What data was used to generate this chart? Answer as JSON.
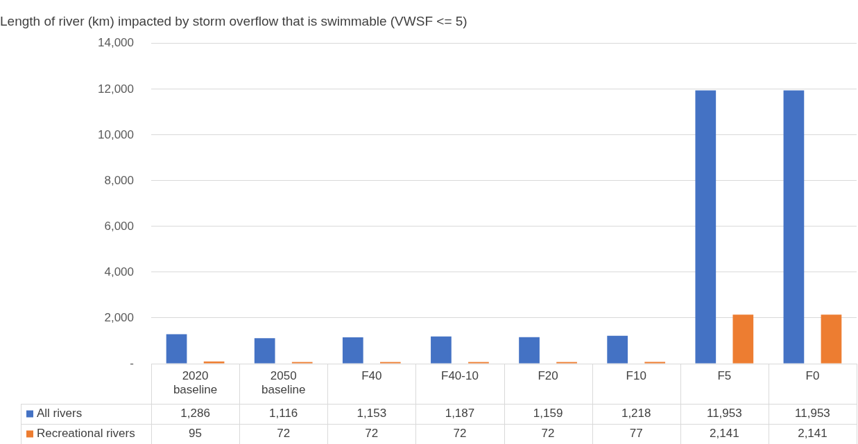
{
  "chart_data": {
    "type": "bar",
    "title": "Length of river (km) impacted by storm overflow that is swimmable (VWSF <= 5)",
    "categories": [
      "2020 baseline",
      "2050 baseline",
      "F40",
      "F40-10",
      "F20",
      "F10",
      "F5",
      "F0"
    ],
    "series": [
      {
        "name": "All rivers",
        "color": "#4472c4",
        "values": [
          1286,
          1116,
          1153,
          1187,
          1159,
          1218,
          11953,
          11953
        ],
        "value_labels": [
          "1,286",
          "1,116",
          "1,153",
          "1,187",
          "1,159",
          "1,218",
          "11,953",
          "11,953"
        ]
      },
      {
        "name": "Recreational rivers",
        "color": "#ed7d31",
        "values": [
          95,
          72,
          72,
          72,
          72,
          77,
          2141,
          2141
        ],
        "value_labels": [
          "95",
          "72",
          "72",
          "72",
          "72",
          "77",
          "2,141",
          "2,141"
        ]
      }
    ],
    "ylim": [
      0,
      14000
    ],
    "yticks": [
      {
        "value": 0,
        "label": "-"
      },
      {
        "value": 2000,
        "label": "2,000"
      },
      {
        "value": 4000,
        "label": "4,000"
      },
      {
        "value": 6000,
        "label": "6,000"
      },
      {
        "value": 8000,
        "label": "8,000"
      },
      {
        "value": 10000,
        "label": "10,000"
      },
      {
        "value": 12000,
        "label": "12,000"
      },
      {
        "value": 14000,
        "label": "14,000"
      }
    ],
    "grid": "y",
    "legend": "bottom"
  }
}
